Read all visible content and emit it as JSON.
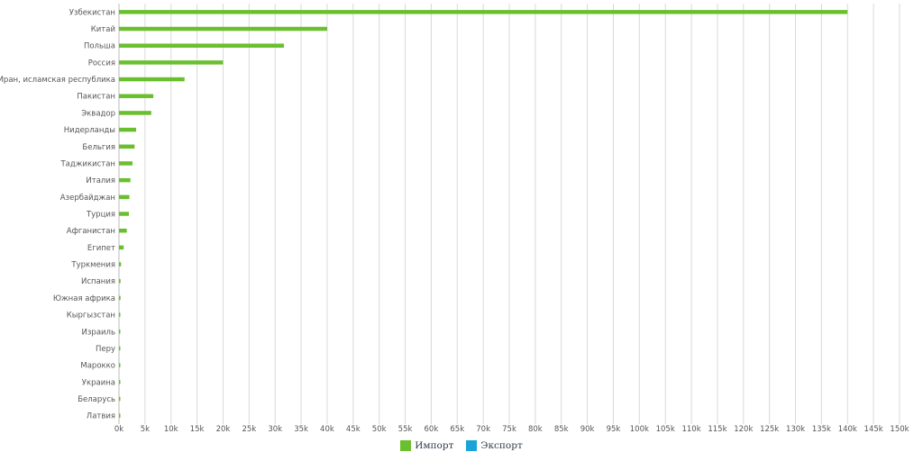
{
  "chart_data": {
    "type": "bar",
    "orientation": "horizontal",
    "categories": [
      "Узбекистан",
      "Китай",
      "Польша",
      "Россия",
      "Иран, исламская республика",
      "Пакистан",
      "Эквадор",
      "Нидерланды",
      "Бельгия",
      "Таджикистан",
      "Италия",
      "Азербайджан",
      "Турция",
      "Афганистан",
      "Египет",
      "Туркмения",
      "Испания",
      "Южная африка",
      "Кыргызстан",
      "Израиль",
      "Перу",
      "Марокко",
      "Украина",
      "Беларусь",
      "Латвия"
    ],
    "series": [
      {
        "name": "Импорт",
        "color": "#6abf2e",
        "values": [
          140000,
          40000,
          31700,
          20000,
          12600,
          6600,
          6200,
          3300,
          3000,
          2600,
          2200,
          2000,
          1900,
          1500,
          900,
          400,
          300,
          300,
          250,
          200,
          150,
          150,
          50,
          30,
          20
        ]
      },
      {
        "name": "Экспорт",
        "color": "#1aa3d9",
        "values": [
          0,
          0,
          0,
          0,
          0,
          0,
          0,
          0,
          0,
          0,
          0,
          0,
          0,
          0,
          0,
          0,
          0,
          0,
          0,
          0,
          0,
          0,
          0,
          0,
          0
        ]
      }
    ],
    "xlim": [
      0,
      150000
    ],
    "tick_labels": [
      "0k",
      "5k",
      "10k",
      "15k",
      "20k",
      "25k",
      "30k",
      "35k",
      "40k",
      "45k",
      "50k",
      "55k",
      "60k",
      "65k",
      "70k",
      "75k",
      "80k",
      "85k",
      "90k",
      "95k",
      "100k",
      "105k",
      "110k",
      "115k",
      "120k",
      "125k",
      "130k",
      "135k",
      "140k",
      "145k",
      "150k"
    ],
    "grid": true,
    "legend_position": "bottom-center",
    "title": "",
    "xlabel": "",
    "ylabel": ""
  }
}
